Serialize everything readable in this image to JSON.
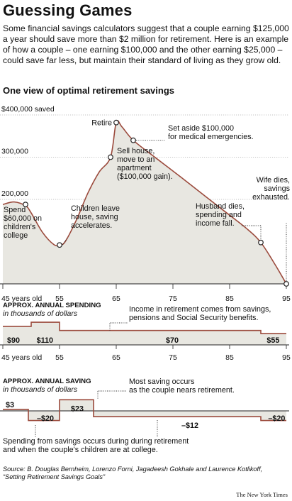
{
  "headline": "Guessing Games",
  "intro": "Some financial savings calculators suggest that a couple earning $125,000 a year should save more than $2 million for retirement. Here is an example of how a couple  – one earning $100,000 and the other earning $25,000 – could save far less, but maintain their standard of living as they grow old.",
  "subhead": "One view of optimal retirement savings",
  "source": "Source: B. Douglas Bernheim, Lorenzo Forni, Jagadeesh Gokhale and Laurence Kotlikoff, “Setting Retirement Savings Goals”",
  "credit": "The New York Times",
  "colors": {
    "line": "#9b4a3c",
    "fill": "#e8e7e1",
    "dots": "#999999"
  },
  "chart_data": [
    {
      "type": "area",
      "title": "One view of optimal retirement savings",
      "xlim": [
        45,
        95
      ],
      "ylim": [
        0,
        400000
      ],
      "x_tick_labels": [
        "45 years old",
        "55",
        "65",
        "75",
        "85",
        "95"
      ],
      "x_ticks": [
        45,
        55,
        65,
        75,
        85,
        95
      ],
      "y_tick_labels": [
        "$400,000 saved",
        "300,000",
        "200,000"
      ],
      "y_ticks": [
        400000,
        300000,
        200000
      ],
      "x": [
        45,
        47,
        49,
        50,
        52,
        54,
        55,
        56,
        58,
        60,
        62,
        64,
        65,
        66,
        68,
        72,
        76,
        80,
        84,
        88,
        90.5,
        93,
        95
      ],
      "y": [
        188000,
        194000,
        185000,
        168000,
        122000,
        93000,
        92000,
        100000,
        152000,
        215000,
        265000,
        300000,
        382000,
        372000,
        340000,
        298000,
        257000,
        215000,
        173000,
        131000,
        98000,
        46000,
        0
      ],
      "annotations": [
        {
          "x": 49,
          "y": 188000,
          "text": [
            "Spend",
            "$60,000 on",
            "children's",
            "college"
          ]
        },
        {
          "x": 55,
          "y": 92000,
          "text": [
            "Children leave",
            "house, saving",
            "accelerates."
          ]
        },
        {
          "x": 64,
          "y": 300000,
          "text": [
            "Sell house,",
            "move to an",
            "apartment",
            "($100,000 gain)."
          ]
        },
        {
          "x": 65,
          "y": 382000,
          "text": [
            "Retire"
          ]
        },
        {
          "x": 68,
          "y": 340000,
          "text": [
            "Set aside $100,000",
            "for medical emergencies."
          ]
        },
        {
          "x": 90.5,
          "y": 98000,
          "text": [
            "Husband dies,",
            "spending and",
            "income fall."
          ]
        },
        {
          "x": 95,
          "y": 0,
          "text": [
            "Wife dies,",
            "savings",
            "exhausted."
          ]
        }
      ]
    },
    {
      "type": "area",
      "title": "APPROX. ANNUAL SPENDING",
      "subtitle": "in thousands of dollars",
      "xlim": [
        45,
        95
      ],
      "x_tick_labels": [
        "45 years old",
        "55",
        "65",
        "75",
        "85",
        "95"
      ],
      "steps": [
        {
          "from": 45,
          "to": 50,
          "value": 90
        },
        {
          "from": 50,
          "to": 55,
          "value": 110
        },
        {
          "from": 55,
          "to": 90.5,
          "value": 70
        },
        {
          "from": 90.5,
          "to": 95,
          "value": 55
        }
      ],
      "value_labels": [
        {
          "x": 45.5,
          "text": "$90"
        },
        {
          "x": 50.7,
          "text": "$110"
        },
        {
          "x": 73.5,
          "text": "$70"
        },
        {
          "x": 91.3,
          "text": "$55"
        }
      ],
      "annotation": [
        "Income in retirement comes from savings,",
        "pensions and Social Security benefits."
      ]
    },
    {
      "type": "area",
      "title": "APPROX. ANNUAL SAVING",
      "subtitle": "in thousands of dollars",
      "xlim": [
        45,
        95
      ],
      "steps": [
        {
          "from": 45,
          "to": 49.5,
          "value": 3
        },
        {
          "from": 49.5,
          "to": 55,
          "value": -20
        },
        {
          "from": 55,
          "to": 61,
          "value": 23
        },
        {
          "from": 61,
          "to": 90.5,
          "value": -12
        },
        {
          "from": 90.5,
          "to": 95,
          "value": -20
        }
      ],
      "value_labels": [
        {
          "x": 45.5,
          "text": "$3"
        },
        {
          "x": 51,
          "text": "–$20"
        },
        {
          "x": 57,
          "text": "$23"
        },
        {
          "x": 76.5,
          "text": "–$12"
        },
        {
          "x": 91.8,
          "text": "–$20"
        }
      ],
      "annotations": [
        [
          "Most saving occurs",
          "as the couple nears retirement."
        ],
        [
          "Spending from savings occurs during during retirement",
          "and when the couple's children are at college."
        ]
      ]
    }
  ]
}
